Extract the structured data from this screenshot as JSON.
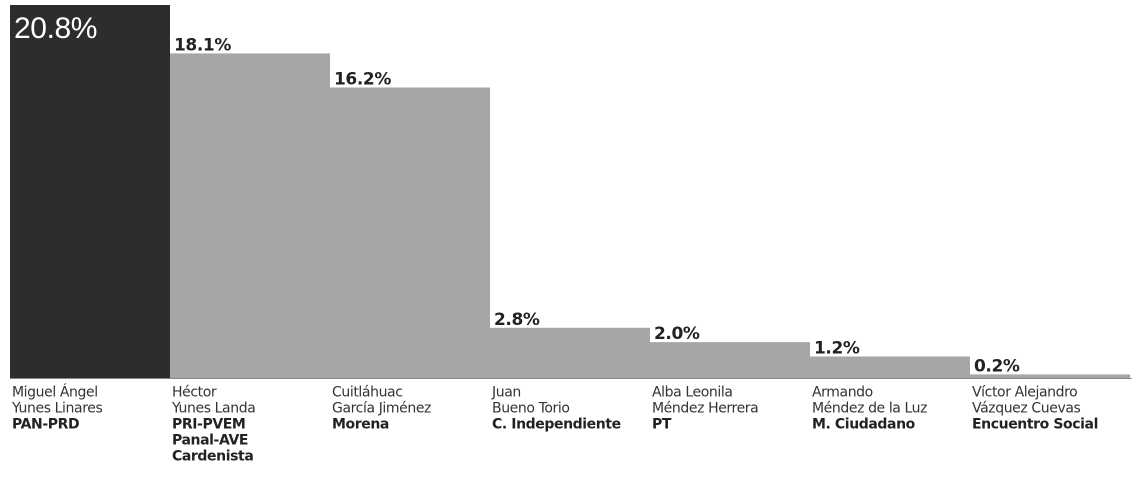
{
  "chart_data": {
    "type": "bar",
    "categories": [
      [
        "Miguel Ángel",
        "Yunes Linares"
      ],
      [
        "Héctor",
        "Yunes Landa"
      ],
      [
        "Cuitláhuac",
        "García Jiménez"
      ],
      [
        "Juan",
        "Bueno Torio"
      ],
      [
        "Alba Leonila",
        "Méndez Herrera"
      ],
      [
        "Armando",
        "Méndez de la Luz"
      ],
      [
        "Víctor Alejandro",
        "Vázquez Cuevas"
      ]
    ],
    "parties": [
      [
        "PAN-PRD"
      ],
      [
        "PRI-PVEM",
        "Panal-AVE",
        "Cardenista"
      ],
      [
        "Morena"
      ],
      [
        "C. Independiente"
      ],
      [
        "PT"
      ],
      [
        "M. Ciudadano"
      ],
      [
        "Encuentro Social"
      ]
    ],
    "values": [
      20.8,
      18.1,
      16.2,
      2.8,
      2.0,
      1.2,
      0.2
    ],
    "value_labels": [
      "20.8%",
      "18.1%",
      "16.2%",
      "2.8%",
      "2.0%",
      "1.2%",
      "0.2%"
    ],
    "colors": [
      "#2d2d2d",
      "#a6a6a6",
      "#a6a6a6",
      "#a6a6a6",
      "#a6a6a6",
      "#a6a6a6",
      "#a6a6a6"
    ]
  }
}
